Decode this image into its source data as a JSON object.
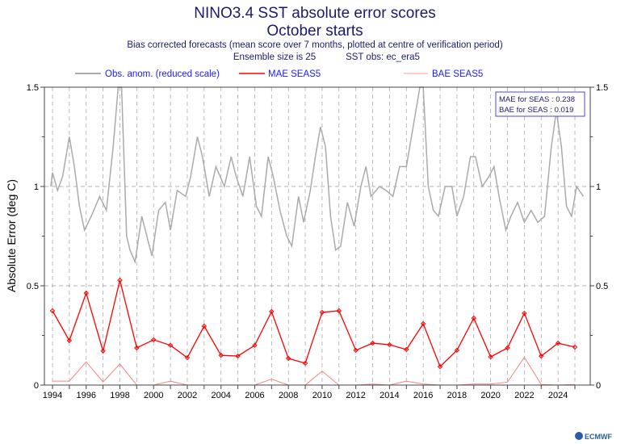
{
  "chart_data": {
    "type": "line",
    "title": "NINO3.4 SST absolute error scores",
    "subtitle": "October starts",
    "subtitle2": "Bias corrected forecasts (mean score over 7 months, plotted at centre of verification period)",
    "ensemble_label": "Ensemble size is 25",
    "obs_label": "SST obs: ec_era5",
    "ylabel": "Absolute Error (deg C)",
    "ylim": [
      0,
      1.5
    ],
    "xlim": [
      1993.5,
      2025.5
    ],
    "yticks": [
      "0",
      "0.5",
      "1",
      "1.5"
    ],
    "xticks": [
      "1994",
      "1996",
      "1998",
      "2000",
      "2002",
      "2004",
      "2006",
      "2008",
      "2010",
      "2012",
      "2014",
      "2016",
      "2018",
      "2020",
      "2022",
      "2024"
    ],
    "grid": true,
    "legend": {
      "position": "top",
      "items": [
        "Obs. anom. (reduced scale)",
        "MAE SEAS5",
        "BAE SEAS5"
      ]
    },
    "summary": [
      "MAE for SEAS : 0.238",
      "BAE for SEAS : 0.019"
    ],
    "colors": {
      "title": "#1a1a6e",
      "legend_text": "#1a1aff",
      "mae": "#ff0000",
      "bae": "#ff8080",
      "obs": "#aaaaaa"
    },
    "years": [
      1994,
      1995,
      1996,
      1997,
      1998,
      1999,
      2000,
      2001,
      2002,
      2003,
      2004,
      2005,
      2006,
      2007,
      2008,
      2009,
      2010,
      2011,
      2012,
      2013,
      2014,
      2015,
      2016,
      2017,
      2018,
      2019,
      2020,
      2021,
      2022,
      2023,
      2024,
      2025
    ],
    "series": [
      {
        "name": "MAE SEAS5",
        "values": [
          0.374,
          0.224,
          0.463,
          0.171,
          0.528,
          0.187,
          0.228,
          0.2,
          0.138,
          0.297,
          0.15,
          0.146,
          0.2,
          0.37,
          0.134,
          0.11,
          0.366,
          0.374,
          0.175,
          0.211,
          0.203,
          0.179,
          0.309,
          0.093,
          0.175,
          0.337,
          0.142,
          0.187,
          0.362,
          0.146,
          0.211,
          0.191
        ]
      },
      {
        "name": "BAE SEAS5",
        "values": [
          0.02,
          0.02,
          0.117,
          0.016,
          0.106,
          0,
          0,
          0.02,
          0,
          0,
          0,
          0,
          0,
          0.03,
          0,
          0,
          0.07,
          0,
          0,
          0.005,
          0,
          0.02,
          0.005,
          0,
          0,
          0.005,
          0.005,
          0.015,
          0.14,
          0.003,
          0,
          0.003
        ]
      },
      {
        "name": "Obs. anom. (reduced scale)",
        "x": [
          1993.9,
          1994.0,
          1994.3,
          1994.6,
          1995.0,
          1995.3,
          1995.6,
          1995.9,
          1996.3,
          1996.8,
          1997.2,
          1997.6,
          1997.9,
          1998.1,
          1998.4,
          1998.6,
          1998.9,
          1999.3,
          1999.6,
          1999.9,
          2000.3,
          2000.7,
          2001.0,
          2001.4,
          2001.9,
          2002.2,
          2002.6,
          2002.9,
          2003.3,
          2003.7,
          2004.2,
          2004.6,
          2004.9,
          2005.3,
          2005.7,
          2006.1,
          2006.4,
          2006.8,
          2007.1,
          2007.5,
          2007.9,
          2008.2,
          2008.6,
          2008.9,
          2009.3,
          2009.6,
          2009.9,
          2010.2,
          2010.5,
          2010.8,
          2011.1,
          2011.5,
          2011.9,
          2012.3,
          2012.6,
          2012.9,
          2013.4,
          2013.8,
          2014.2,
          2014.6,
          2015.0,
          2015.4,
          2015.8,
          2016.0,
          2016.3,
          2016.6,
          2016.9,
          2017.3,
          2017.7,
          2018.0,
          2018.4,
          2018.8,
          2019.1,
          2019.5,
          2019.9,
          2020.2,
          2020.5,
          2020.9,
          2021.2,
          2021.6,
          2022.0,
          2022.4,
          2022.8,
          2023.2,
          2023.6,
          2023.9,
          2024.2,
          2024.5,
          2024.8,
          2025.1,
          2025.5
        ],
        "values": [
          1.0,
          1.07,
          0.98,
          1.05,
          1.25,
          1.1,
          0.9,
          0.78,
          0.85,
          0.95,
          0.88,
          1.2,
          1.5,
          1.5,
          0.75,
          0.68,
          0.62,
          0.85,
          0.75,
          0.65,
          0.88,
          0.92,
          0.78,
          0.98,
          0.95,
          1.05,
          1.25,
          1.15,
          0.95,
          1.1,
          1.0,
          1.15,
          1.05,
          0.95,
          1.15,
          0.9,
          0.85,
          1.15,
          1.05,
          0.88,
          0.75,
          0.7,
          0.95,
          0.82,
          0.98,
          1.15,
          1.3,
          1.2,
          0.85,
          0.68,
          0.7,
          0.92,
          0.8,
          1.0,
          1.1,
          0.95,
          1.0,
          0.98,
          0.95,
          1.1,
          1.1,
          1.3,
          1.5,
          1.5,
          1.0,
          0.88,
          0.85,
          1.0,
          1.0,
          0.85,
          0.95,
          1.15,
          1.15,
          1.0,
          1.05,
          1.1,
          0.95,
          0.78,
          0.85,
          0.92,
          0.82,
          0.88,
          0.82,
          0.85,
          1.2,
          1.38,
          1.2,
          0.9,
          0.85,
          1.0,
          0.95
        ]
      }
    ],
    "logo": "ECMWF"
  }
}
